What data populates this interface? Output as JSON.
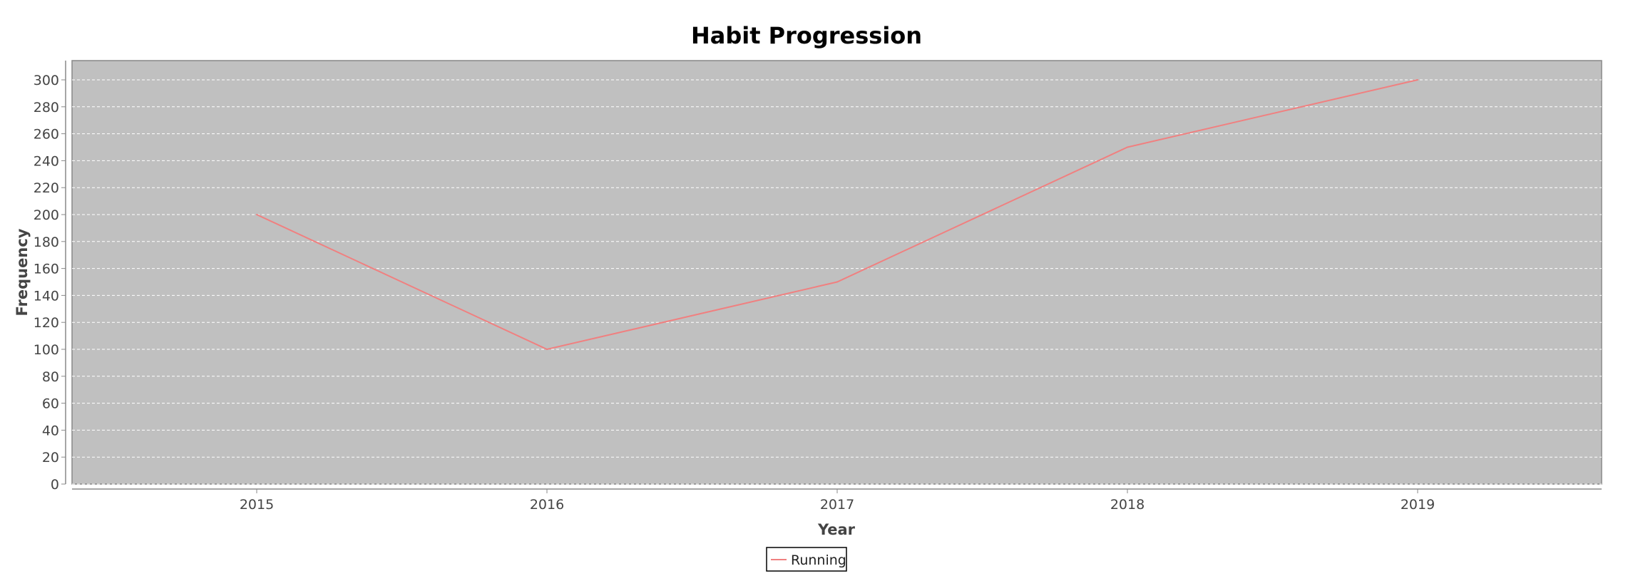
{
  "chart_data": {
    "type": "line",
    "title": "Habit Progression",
    "xlabel": "Year",
    "ylabel": "Frequency",
    "categories": [
      "2015",
      "2016",
      "2017",
      "2018",
      "2019"
    ],
    "series": [
      {
        "name": "Running",
        "values": [
          200,
          100,
          150,
          250,
          300
        ],
        "color": "#f08080"
      }
    ],
    "ylim": [
      0,
      300
    ],
    "yticks": [
      0,
      20,
      40,
      60,
      80,
      100,
      120,
      140,
      160,
      180,
      200,
      220,
      240,
      260,
      280,
      300
    ],
    "grid": true,
    "plot_background": "#c0c0c0",
    "legend_position": "bottom-center"
  }
}
